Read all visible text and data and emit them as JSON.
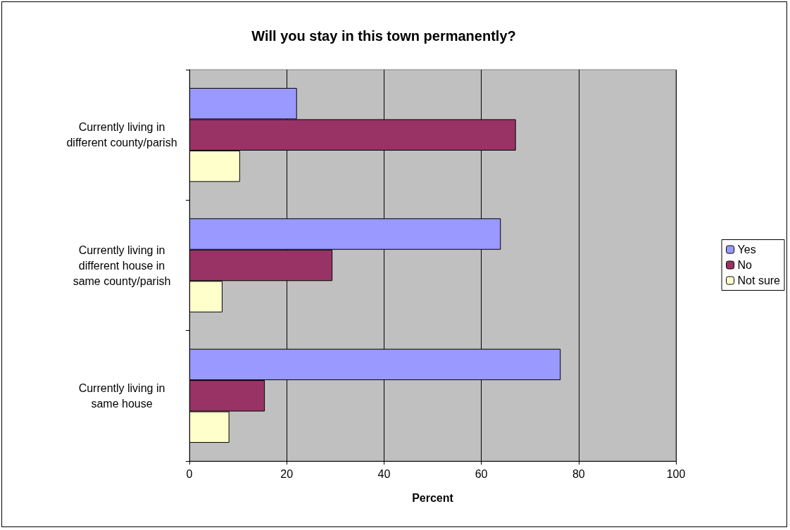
{
  "chart_data": {
    "type": "bar",
    "orientation": "horizontal",
    "title": "Will you stay in this town permanently?",
    "xlabel": "Percent",
    "categories": [
      "Currently living in\ndifferent county/parish",
      "Currently living in\ndifferent house in\nsame county/parish",
      "Currently living in\nsame house"
    ],
    "series": [
      {
        "name": "Yes",
        "color": "#9999ff",
        "values": [
          22.1,
          64.0,
          76.3
        ]
      },
      {
        "name": "No",
        "color": "#993366",
        "values": [
          67.1,
          29.4,
          15.5
        ]
      },
      {
        "name": "Not sure",
        "color": "#ffffcc",
        "values": [
          10.4,
          6.8,
          8.2
        ]
      }
    ],
    "xlim": [
      0,
      100
    ],
    "xticks": [
      0,
      20,
      40,
      60,
      80,
      100
    ],
    "grid": "x",
    "legend": "right"
  }
}
